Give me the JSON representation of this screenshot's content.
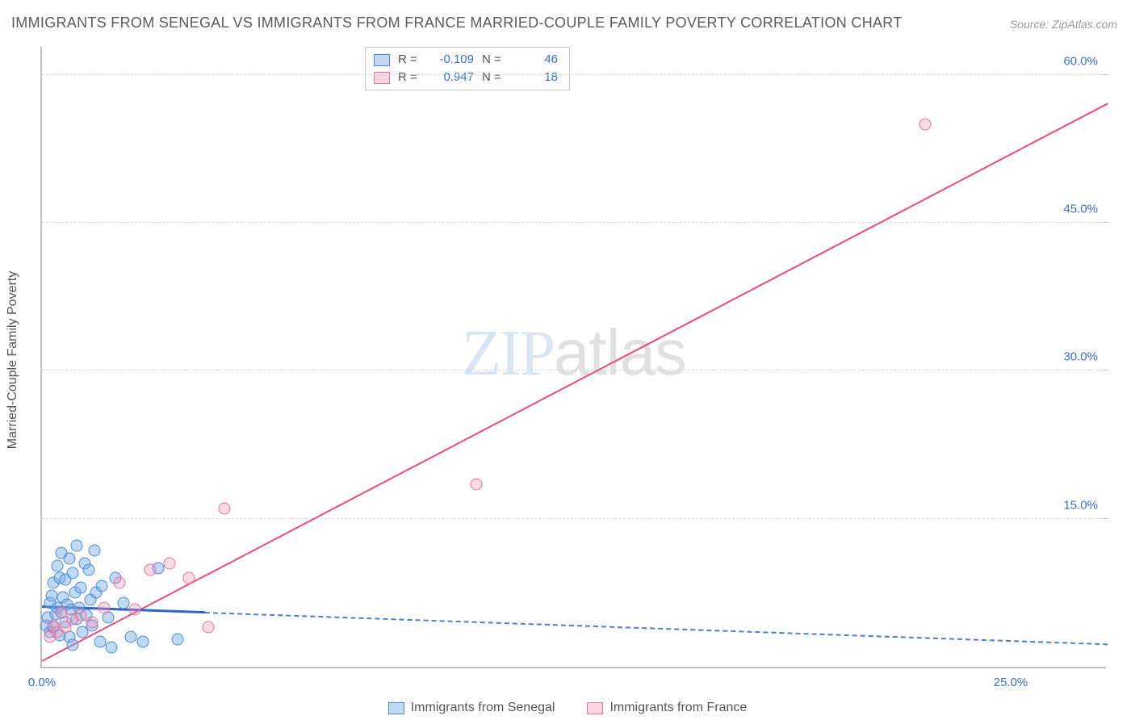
{
  "title": "IMMIGRANTS FROM SENEGAL VS IMMIGRANTS FROM FRANCE MARRIED-COUPLE FAMILY POVERTY CORRELATION CHART",
  "source": "Source: ZipAtlas.com",
  "ylabel": "Married-Couple Family Poverty",
  "watermark": {
    "zip": "ZIP",
    "atlas": "atlas"
  },
  "chart": {
    "type": "scatter",
    "background_color": "#ffffff",
    "grid_color": "#d8d8d8",
    "axis_color": "#bfbfbf",
    "tick_label_color": "#3b6fc9",
    "tick_fontsize": 15,
    "xlim": [
      0,
      27.5
    ],
    "ylim": [
      0,
      63
    ],
    "xticks": [
      {
        "v": 0,
        "label": "0.0%"
      },
      {
        "v": 25,
        "label": "25.0%"
      }
    ],
    "yticks": [
      {
        "v": 15,
        "label": "15.0%"
      },
      {
        "v": 30,
        "label": "30.0%"
      },
      {
        "v": 45,
        "label": "45.0%"
      },
      {
        "v": 60,
        "label": "60.0%"
      }
    ],
    "series": [
      {
        "name": "Immigrants from Senegal",
        "key": "senegal",
        "marker_fill": "rgba(120,170,230,0.45)",
        "marker_stroke": "#4a8ad4",
        "marker_size": 15,
        "R": "-0.109",
        "N": "46",
        "trend": {
          "x1": 0,
          "y1": 6.0,
          "x2": 27.5,
          "y2": 2.2,
          "solid_until_x": 4.2,
          "color": "#2e63c9"
        },
        "points": [
          [
            0.1,
            4.2
          ],
          [
            0.15,
            5.0
          ],
          [
            0.2,
            6.5
          ],
          [
            0.2,
            3.5
          ],
          [
            0.25,
            7.2
          ],
          [
            0.3,
            4.0
          ],
          [
            0.3,
            8.5
          ],
          [
            0.35,
            5.3
          ],
          [
            0.4,
            6.0
          ],
          [
            0.4,
            10.2
          ],
          [
            0.45,
            3.2
          ],
          [
            0.45,
            9.0
          ],
          [
            0.5,
            5.5
          ],
          [
            0.5,
            11.5
          ],
          [
            0.55,
            7.0
          ],
          [
            0.6,
            4.5
          ],
          [
            0.6,
            8.8
          ],
          [
            0.65,
            6.3
          ],
          [
            0.7,
            11.0
          ],
          [
            0.7,
            3.0
          ],
          [
            0.75,
            5.8
          ],
          [
            0.8,
            9.5
          ],
          [
            0.8,
            2.2
          ],
          [
            0.85,
            7.5
          ],
          [
            0.9,
            4.8
          ],
          [
            0.9,
            12.3
          ],
          [
            0.95,
            6.0
          ],
          [
            1.0,
            8.0
          ],
          [
            1.05,
            3.5
          ],
          [
            1.1,
            10.5
          ],
          [
            1.15,
            5.2
          ],
          [
            1.2,
            9.8
          ],
          [
            1.25,
            6.8
          ],
          [
            1.3,
            4.2
          ],
          [
            1.35,
            11.8
          ],
          [
            1.4,
            7.5
          ],
          [
            1.5,
            2.5
          ],
          [
            1.55,
            8.2
          ],
          [
            1.7,
            5.0
          ],
          [
            1.8,
            2.0
          ],
          [
            1.9,
            9.0
          ],
          [
            2.1,
            6.5
          ],
          [
            2.3,
            3.0
          ],
          [
            2.6,
            2.5
          ],
          [
            3.0,
            10.0
          ],
          [
            3.5,
            2.8
          ]
        ]
      },
      {
        "name": "Immigrants from France",
        "key": "france",
        "marker_fill": "rgba(240,150,180,0.35)",
        "marker_stroke": "#e6719a",
        "marker_size": 15,
        "R": "0.947",
        "N": "18",
        "trend": {
          "x1": 0,
          "y1": 0.5,
          "x2": 27.5,
          "y2": 57.0,
          "color": "#e84c7f"
        },
        "points": [
          [
            0.2,
            3.0
          ],
          [
            0.3,
            4.2
          ],
          [
            0.4,
            3.5
          ],
          [
            0.5,
            5.5
          ],
          [
            0.6,
            4.0
          ],
          [
            0.8,
            4.8
          ],
          [
            1.0,
            5.2
          ],
          [
            1.3,
            4.5
          ],
          [
            1.6,
            6.0
          ],
          [
            2.0,
            8.5
          ],
          [
            2.4,
            5.8
          ],
          [
            2.8,
            9.8
          ],
          [
            3.3,
            10.5
          ],
          [
            3.8,
            9.0
          ],
          [
            4.3,
            4.0
          ],
          [
            4.7,
            16.0
          ],
          [
            11.2,
            18.5
          ],
          [
            22.8,
            55.0
          ]
        ]
      }
    ]
  },
  "legend_bottom": [
    {
      "swatch": "blue",
      "label": "Immigrants from Senegal"
    },
    {
      "swatch": "pink",
      "label": "Immigrants from France"
    }
  ]
}
